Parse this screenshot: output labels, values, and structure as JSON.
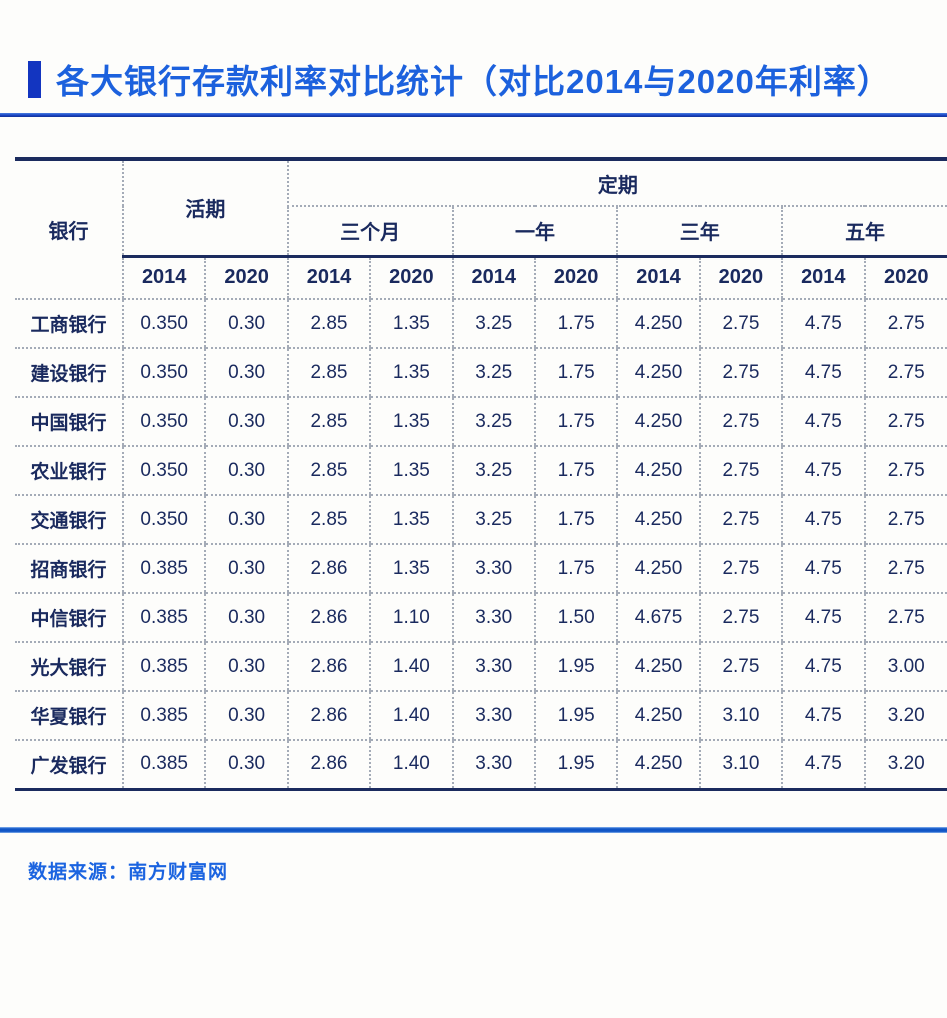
{
  "title": {
    "text": "各大银行存款利率对比统计（对比2014与2020年利率）",
    "color": "#1c61dd",
    "marker_color": "#1335c0"
  },
  "header": {
    "bank": "银行",
    "demand": "活期",
    "fixed": "定期",
    "terms": [
      "三个月",
      "一年",
      "三年",
      "五年"
    ],
    "years": [
      "2014",
      "2020"
    ]
  },
  "footer": {
    "source": "数据来源：南方财富网"
  },
  "colors": {
    "table_ink": "#1b2b5e",
    "dotted_grid": "#a4abb7",
    "accent_blue": "#1a44c4",
    "footer_blue": "#1b64e0"
  },
  "chart_data": {
    "type": "table",
    "title": "各大银行存款利率对比统计（对比2014与2020年利率）",
    "column_groups": [
      "银行",
      "活期",
      "定期：三个月",
      "定期：一年",
      "定期：三年",
      "定期：五年"
    ],
    "columns": [
      "银行",
      "活期 2014",
      "活期 2020",
      "三个月 2014",
      "三个月 2020",
      "一年 2014",
      "一年 2020",
      "三年 2014",
      "三年 2020",
      "五年 2014",
      "五年 2020"
    ],
    "rows": [
      {
        "bank": "工商银行",
        "values": [
          "0.350",
          "0.30",
          "2.85",
          "1.35",
          "3.25",
          "1.75",
          "4.250",
          "2.75",
          "4.75",
          "2.75"
        ]
      },
      {
        "bank": "建设银行",
        "values": [
          "0.350",
          "0.30",
          "2.85",
          "1.35",
          "3.25",
          "1.75",
          "4.250",
          "2.75",
          "4.75",
          "2.75"
        ]
      },
      {
        "bank": "中国银行",
        "values": [
          "0.350",
          "0.30",
          "2.85",
          "1.35",
          "3.25",
          "1.75",
          "4.250",
          "2.75",
          "4.75",
          "2.75"
        ]
      },
      {
        "bank": "农业银行",
        "values": [
          "0.350",
          "0.30",
          "2.85",
          "1.35",
          "3.25",
          "1.75",
          "4.250",
          "2.75",
          "4.75",
          "2.75"
        ]
      },
      {
        "bank": "交通银行",
        "values": [
          "0.350",
          "0.30",
          "2.85",
          "1.35",
          "3.25",
          "1.75",
          "4.250",
          "2.75",
          "4.75",
          "2.75"
        ]
      },
      {
        "bank": "招商银行",
        "values": [
          "0.385",
          "0.30",
          "2.86",
          "1.35",
          "3.30",
          "1.75",
          "4.250",
          "2.75",
          "4.75",
          "2.75"
        ]
      },
      {
        "bank": "中信银行",
        "values": [
          "0.385",
          "0.30",
          "2.86",
          "1.10",
          "3.30",
          "1.50",
          "4.675",
          "2.75",
          "4.75",
          "2.75"
        ]
      },
      {
        "bank": "光大银行",
        "values": [
          "0.385",
          "0.30",
          "2.86",
          "1.40",
          "3.30",
          "1.95",
          "4.250",
          "2.75",
          "4.75",
          "3.00"
        ]
      },
      {
        "bank": "华夏银行",
        "values": [
          "0.385",
          "0.30",
          "2.86",
          "1.40",
          "3.30",
          "1.95",
          "4.250",
          "3.10",
          "4.75",
          "3.20"
        ]
      },
      {
        "bank": "广发银行",
        "values": [
          "0.385",
          "0.30",
          "2.86",
          "1.40",
          "3.30",
          "1.95",
          "4.250",
          "3.10",
          "4.75",
          "3.20"
        ]
      }
    ],
    "source": "南方财富网"
  }
}
